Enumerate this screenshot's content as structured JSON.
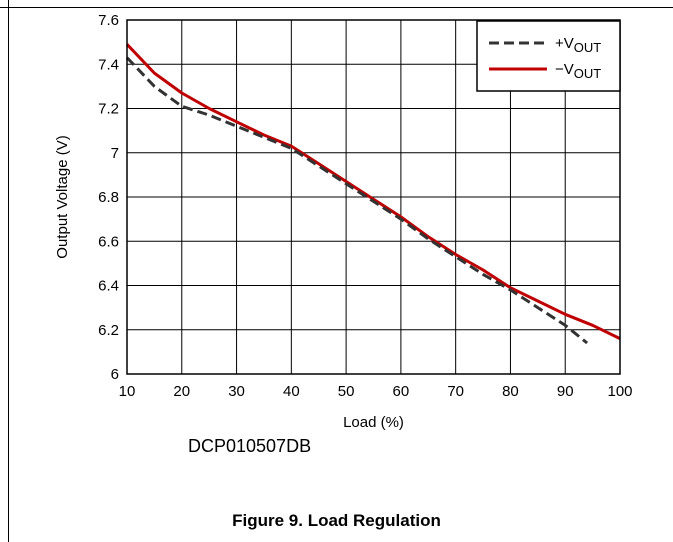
{
  "chart_data": {
    "type": "line",
    "xlabel": "Load (%)",
    "ylabel": "Output Voltage (V)",
    "xlim": [
      10,
      100
    ],
    "ylim": [
      6,
      7.6
    ],
    "x_ticks": [
      10,
      20,
      30,
      40,
      50,
      60,
      70,
      80,
      90,
      100
    ],
    "x_tick_labels": [
      "10",
      "20",
      "30",
      "40",
      "50",
      "60",
      "70",
      "80",
      "90",
      "100"
    ],
    "y_ticks": [
      6,
      6.2,
      6.4,
      6.6,
      6.8,
      7,
      7.2,
      7.4,
      7.6
    ],
    "y_tick_labels": [
      "6",
      "6.2",
      "6.4",
      "6.6",
      "6.8",
      "7",
      "7.2",
      "7.4",
      "7.6"
    ],
    "grid": true,
    "legend_position": "top-right",
    "series": [
      {
        "name": "+VOUT",
        "label_main": "+V",
        "label_sub": "OUT",
        "color": "#333333",
        "style": "dashed",
        "x": [
          10,
          15,
          20,
          25,
          30,
          35,
          40,
          45,
          50,
          55,
          60,
          65,
          70,
          75,
          80,
          85,
          90,
          94
        ],
        "y": [
          7.43,
          7.3,
          7.21,
          7.17,
          7.12,
          7.07,
          7.02,
          6.94,
          6.86,
          6.78,
          6.7,
          6.61,
          6.53,
          6.45,
          6.38,
          6.3,
          6.22,
          6.14
        ]
      },
      {
        "name": "−VOUT",
        "label_main": "−V",
        "label_sub": "OUT",
        "color": "#c00000",
        "style": "solid",
        "x": [
          10,
          15,
          20,
          25,
          30,
          35,
          40,
          45,
          50,
          55,
          60,
          65,
          70,
          75,
          80,
          85,
          90,
          95,
          100
        ],
        "y": [
          7.49,
          7.36,
          7.27,
          7.2,
          7.14,
          7.08,
          7.03,
          6.95,
          6.87,
          6.79,
          6.71,
          6.62,
          6.54,
          6.47,
          6.39,
          6.33,
          6.27,
          6.22,
          6.16
        ]
      }
    ]
  },
  "variant_label": "DCP010507DB",
  "figure_caption": "Figure 9. Load Regulation"
}
